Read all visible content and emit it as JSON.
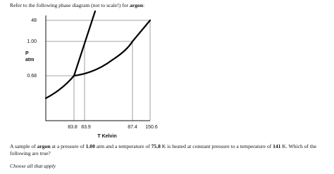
{
  "intro": [
    "Refer to the following phase diagram (not to scale!) for ",
    "argon",
    ":"
  ],
  "diagram": {
    "y_axis_label": [
      "P",
      "atm"
    ],
    "y_ticks": [
      "48",
      "1.00",
      "0.68"
    ],
    "x_ticks": [
      "83.8",
      "83.9",
      "87.4",
      "150.6"
    ],
    "x_axis_label": "T Kelvin"
  },
  "question": [
    "A sample of ",
    "argon",
    " at a pressure of ",
    "1.00",
    " atm and a temperature of ",
    "75.8",
    " K is heated at constant pressure to a temperature of ",
    "141",
    " K. Which of the following are true?"
  ],
  "instruction": "Choose all that apply"
}
